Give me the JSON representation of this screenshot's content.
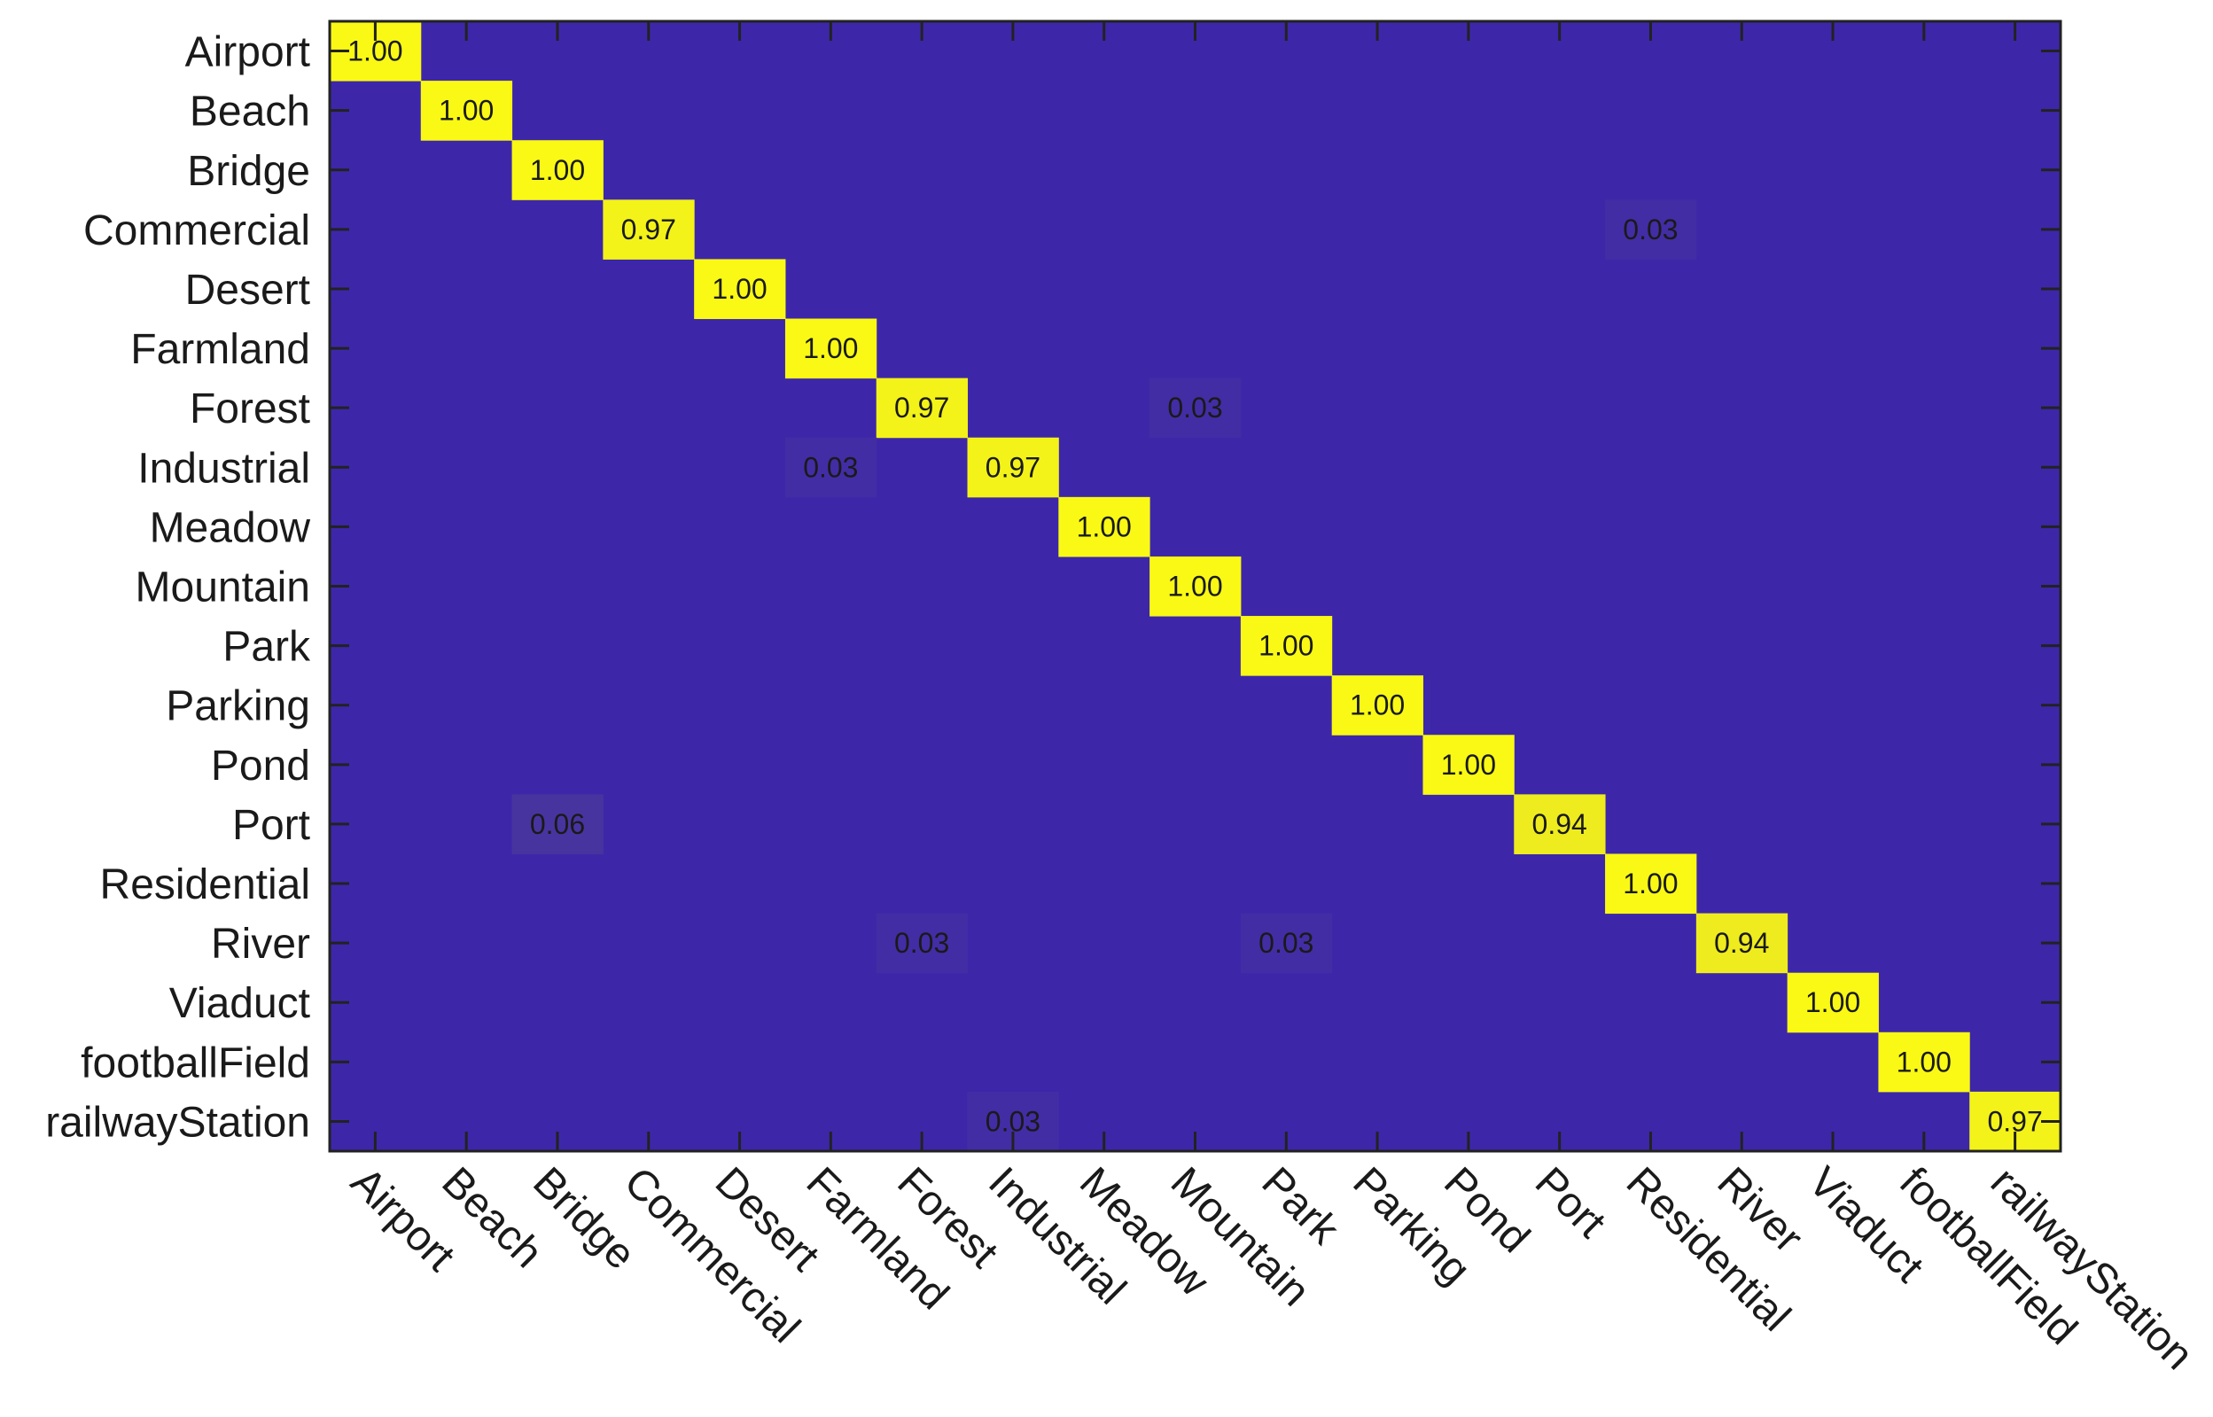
{
  "chart_data": {
    "type": "heatmap",
    "title": "",
    "xlabel": "",
    "ylabel": "",
    "categories": [
      "Airport",
      "Beach",
      "Bridge",
      "Commercial",
      "Desert",
      "Farmland",
      "Forest",
      "Industrial",
      "Meadow",
      "Mountain",
      "Park",
      "Parking",
      "Pond",
      "Port",
      "Residential",
      "River",
      "Viaduct",
      "footballField",
      "railwayStation"
    ],
    "cells": [
      {
        "row": "Airport",
        "col": "Airport",
        "value": 1.0,
        "label": "1.00"
      },
      {
        "row": "Beach",
        "col": "Beach",
        "value": 1.0,
        "label": "1.00"
      },
      {
        "row": "Bridge",
        "col": "Bridge",
        "value": 1.0,
        "label": "1.00"
      },
      {
        "row": "Commercial",
        "col": "Commercial",
        "value": 0.97,
        "label": "0.97"
      },
      {
        "row": "Commercial",
        "col": "Residential",
        "value": 0.03,
        "label": "0.03"
      },
      {
        "row": "Desert",
        "col": "Desert",
        "value": 1.0,
        "label": "1.00"
      },
      {
        "row": "Farmland",
        "col": "Farmland",
        "value": 1.0,
        "label": "1.00"
      },
      {
        "row": "Forest",
        "col": "Forest",
        "value": 0.97,
        "label": "0.97"
      },
      {
        "row": "Forest",
        "col": "Mountain",
        "value": 0.03,
        "label": "0.03"
      },
      {
        "row": "Industrial",
        "col": "Farmland",
        "value": 0.03,
        "label": "0.03"
      },
      {
        "row": "Industrial",
        "col": "Industrial",
        "value": 0.97,
        "label": "0.97"
      },
      {
        "row": "Meadow",
        "col": "Meadow",
        "value": 1.0,
        "label": "1.00"
      },
      {
        "row": "Mountain",
        "col": "Mountain",
        "value": 1.0,
        "label": "1.00"
      },
      {
        "row": "Park",
        "col": "Park",
        "value": 1.0,
        "label": "1.00"
      },
      {
        "row": "Parking",
        "col": "Parking",
        "value": 1.0,
        "label": "1.00"
      },
      {
        "row": "Pond",
        "col": "Pond",
        "value": 1.0,
        "label": "1.00"
      },
      {
        "row": "Port",
        "col": "Bridge",
        "value": 0.06,
        "label": "0.06"
      },
      {
        "row": "Port",
        "col": "Port",
        "value": 0.94,
        "label": "0.94"
      },
      {
        "row": "Residential",
        "col": "Residential",
        "value": 1.0,
        "label": "1.00"
      },
      {
        "row": "River",
        "col": "Forest",
        "value": 0.03,
        "label": "0.03"
      },
      {
        "row": "River",
        "col": "Park",
        "value": 0.03,
        "label": "0.03"
      },
      {
        "row": "River",
        "col": "River",
        "value": 0.94,
        "label": "0.94"
      },
      {
        "row": "Viaduct",
        "col": "Viaduct",
        "value": 1.0,
        "label": "1.00"
      },
      {
        "row": "footballField",
        "col": "footballField",
        "value": 1.0,
        "label": "1.00"
      },
      {
        "row": "railwayStation",
        "col": "Industrial",
        "value": 0.03,
        "label": "0.03"
      },
      {
        "row": "railwayStation",
        "col": "railwayStation",
        "value": 0.97,
        "label": "0.97"
      }
    ],
    "value_range": [
      0,
      1
    ],
    "colormap": {
      "low": "#3d27a8",
      "high": "#f9f915"
    },
    "grid": false,
    "legend": "none"
  }
}
